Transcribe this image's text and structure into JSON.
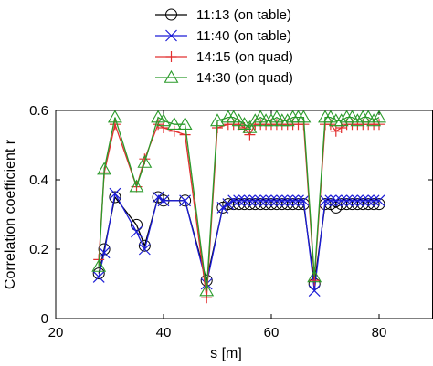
{
  "chart_data": {
    "type": "line",
    "xlabel": "s [m]",
    "ylabel": "Correlation coefficient r",
    "xlim": [
      20,
      90
    ],
    "ylim": [
      0,
      0.6
    ],
    "xticks": [
      20,
      40,
      60,
      80
    ],
    "yticks": [
      0,
      0.2,
      0.4,
      0.6
    ],
    "xtick_labels": [
      "20",
      "40",
      "60",
      "80"
    ],
    "ytick_labels": [
      "0",
      "0.2",
      "0.4",
      "0.6"
    ],
    "grid": false,
    "legend_position": "top",
    "series": [
      {
        "name": "11:13 (on table)",
        "color": "#000000",
        "marker": "circle",
        "x": [
          28,
          29,
          31,
          35,
          36.5,
          39,
          40,
          44,
          48,
          51,
          52,
          53,
          54,
          55,
          56,
          57,
          58,
          59,
          60,
          61,
          62,
          63,
          64,
          65,
          66,
          68,
          70,
          71,
          72,
          73,
          74,
          75,
          76,
          77,
          78,
          79,
          80
        ],
        "y": [
          0.13,
          0.2,
          0.35,
          0.27,
          0.21,
          0.35,
          0.34,
          0.34,
          0.11,
          0.32,
          0.33,
          0.33,
          0.33,
          0.33,
          0.33,
          0.33,
          0.33,
          0.33,
          0.33,
          0.33,
          0.33,
          0.33,
          0.33,
          0.33,
          0.33,
          0.1,
          0.33,
          0.33,
          0.32,
          0.33,
          0.33,
          0.33,
          0.33,
          0.33,
          0.33,
          0.33,
          0.33
        ]
      },
      {
        "name": "11:40 (on table)",
        "color": "#1c1cd6",
        "marker": "x",
        "x": [
          28,
          29,
          31,
          35,
          36.5,
          39,
          40,
          44,
          48,
          51,
          52,
          53,
          54,
          55,
          56,
          57,
          58,
          59,
          60,
          61,
          62,
          63,
          64,
          65,
          66,
          68,
          70,
          71,
          72,
          73,
          74,
          75,
          76,
          77,
          78,
          79,
          80
        ],
        "y": [
          0.12,
          0.19,
          0.36,
          0.25,
          0.2,
          0.35,
          0.34,
          0.34,
          0.1,
          0.32,
          0.33,
          0.34,
          0.34,
          0.34,
          0.34,
          0.34,
          0.34,
          0.34,
          0.34,
          0.34,
          0.34,
          0.34,
          0.34,
          0.34,
          0.34,
          0.08,
          0.34,
          0.34,
          0.34,
          0.34,
          0.34,
          0.34,
          0.34,
          0.34,
          0.34,
          0.34,
          0.34
        ]
      },
      {
        "name": "14:15 (on quad)",
        "color": "#e23030",
        "marker": "plus",
        "x": [
          28,
          29,
          31,
          35,
          36.5,
          39,
          40,
          42,
          44,
          48,
          50,
          52,
          53,
          54,
          55,
          56,
          57,
          58,
          59,
          60,
          61,
          62,
          63,
          64,
          65,
          66,
          68,
          70,
          71,
          72,
          73,
          74,
          75,
          76,
          77,
          78,
          79,
          80
        ],
        "y": [
          0.17,
          0.42,
          0.56,
          0.38,
          0.46,
          0.56,
          0.55,
          0.54,
          0.53,
          0.06,
          0.55,
          0.56,
          0.56,
          0.56,
          0.55,
          0.53,
          0.56,
          0.56,
          0.56,
          0.56,
          0.56,
          0.56,
          0.56,
          0.56,
          0.56,
          0.56,
          0.11,
          0.56,
          0.56,
          0.54,
          0.55,
          0.56,
          0.56,
          0.56,
          0.56,
          0.56,
          0.56,
          0.56
        ]
      },
      {
        "name": "14:30 (on quad)",
        "color": "#2a9a2a",
        "marker": "triangle",
        "x": [
          28,
          29,
          31,
          35,
          36.5,
          39,
          40,
          42,
          44,
          48,
          50,
          52,
          53,
          54,
          55,
          56,
          57,
          58,
          59,
          60,
          61,
          62,
          63,
          64,
          65,
          66,
          68,
          70,
          71,
          72,
          73,
          74,
          75,
          76,
          77,
          78,
          79,
          80
        ],
        "y": [
          0.15,
          0.43,
          0.58,
          0.38,
          0.45,
          0.58,
          0.57,
          0.56,
          0.56,
          0.08,
          0.57,
          0.58,
          0.58,
          0.57,
          0.56,
          0.55,
          0.57,
          0.58,
          0.57,
          0.57,
          0.58,
          0.57,
          0.57,
          0.58,
          0.58,
          0.58,
          0.12,
          0.58,
          0.58,
          0.57,
          0.57,
          0.58,
          0.58,
          0.57,
          0.58,
          0.58,
          0.57,
          0.58
        ]
      }
    ]
  }
}
